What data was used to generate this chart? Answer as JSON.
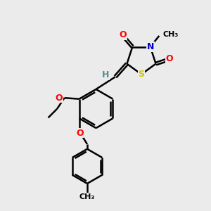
{
  "bg_color": "#ebebeb",
  "bond_color": "#000000",
  "atom_colors": {
    "O": "#ff0000",
    "N": "#0000cd",
    "S": "#cccc00",
    "H": "#4e8f8f",
    "C": "#000000"
  },
  "figsize": [
    3.0,
    3.0
  ],
  "dpi": 100
}
